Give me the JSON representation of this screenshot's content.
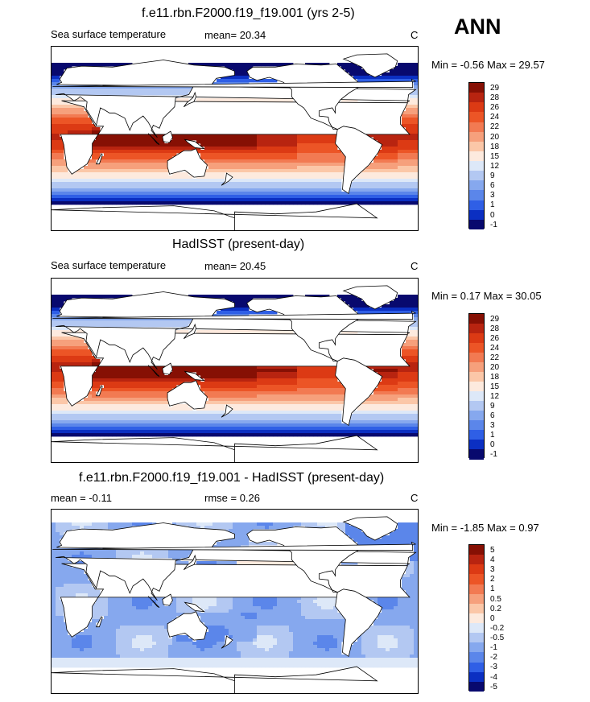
{
  "season": "ANN",
  "colors": {
    "sst_scale": [
      "#08096e",
      "#0b2fc2",
      "#2f5fe6",
      "#5b86ea",
      "#86a8ee",
      "#b3c8f2",
      "#dde8f8",
      "#fdeade",
      "#fbc7a8",
      "#f6a07c",
      "#f27a52",
      "#ec5526",
      "#dc3a14",
      "#b82410",
      "#861004"
    ],
    "diff_scale": [
      "#08096e",
      "#0b2fc2",
      "#2f5fe6",
      "#5b86ea",
      "#86a8ee",
      "#b3c8f2",
      "#dde8f8",
      "#fdeade",
      "#fbc7a8",
      "#f6a07c",
      "#f27a52",
      "#ec5526",
      "#dc3a14",
      "#b82410",
      "#861004"
    ]
  },
  "panels": [
    {
      "title": "f.e11.rbn.F2000.f19_f19.001 (yrs 2-5)",
      "left_label": "Sea surface temperature",
      "mid_label": "mean=  20.34",
      "unit": "C",
      "minmax": "Min =  -0.56 Max =  29.57",
      "levels": [
        "29",
        "28",
        "26",
        "24",
        "22",
        "20",
        "18",
        "15",
        "12",
        "9",
        "6",
        "3",
        "1",
        "0",
        "-1"
      ],
      "kind": "sst"
    },
    {
      "title": "HadISST (present-day)",
      "left_label": "Sea surface temperature",
      "mid_label": "mean=  20.45",
      "unit": "C",
      "minmax": "Min =   0.17 Max =  30.05",
      "levels": [
        "29",
        "28",
        "26",
        "24",
        "22",
        "20",
        "18",
        "15",
        "12",
        "9",
        "6",
        "3",
        "1",
        "0",
        "-1"
      ],
      "kind": "sst"
    },
    {
      "title": "f.e11.rbn.F2000.f19_f19.001 - HadISST (present-day)",
      "left_label": "mean =  -0.11",
      "mid_label": "rmse =   0.26",
      "unit": "C",
      "minmax": "Min =  -1.85 Max =   0.97",
      "levels": [
        "5",
        "4",
        "3",
        "2",
        "1",
        "0.5",
        "0.2",
        "0",
        "-0.2",
        "-0.5",
        "-1",
        "-2",
        "-3",
        "-4",
        "-5"
      ],
      "kind": "diff"
    }
  ]
}
